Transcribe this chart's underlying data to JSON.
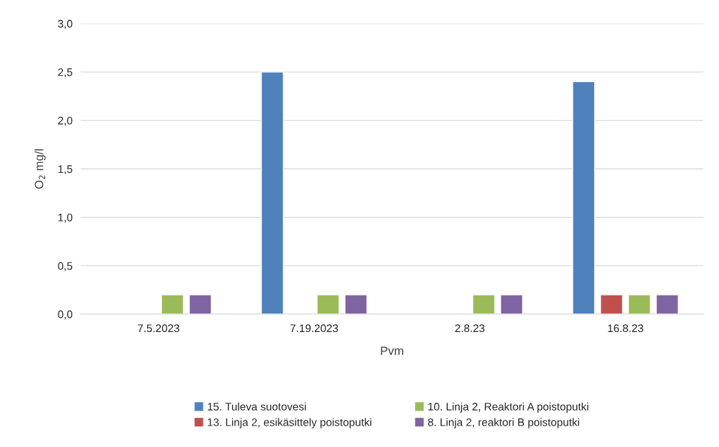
{
  "chart_data": {
    "type": "bar",
    "xlabel": "Pvm",
    "ylabel": "O$_{2}$ mg/l",
    "categories": [
      "7.5.2023",
      "7.19.2023",
      "2.8.23",
      "16.8.23"
    ],
    "series": [
      {
        "name": "15. Tuleva suotovesi",
        "color": "#4f81bd",
        "values": [
          null,
          2.5,
          null,
          2.4
        ]
      },
      {
        "name": "13. Linja 2, esikäsittely poistoputki",
        "color": "#c0504d",
        "values": [
          null,
          null,
          null,
          0.2
        ]
      },
      {
        "name": "10. Linja 2, Reaktori A poistoputki",
        "color": "#9bbb59",
        "values": [
          0.2,
          0.2,
          0.2,
          0.2
        ]
      },
      {
        "name": "8. Linja 2, reaktori B poistoputki",
        "color": "#8064a2",
        "values": [
          0.2,
          0.2,
          0.2,
          0.2
        ]
      }
    ],
    "ylim": [
      0,
      3
    ],
    "yticks": [
      {
        "value": 0,
        "label": "0,0"
      },
      {
        "value": 0.5,
        "label": "0,5"
      },
      {
        "value": 1,
        "label": "1,0"
      },
      {
        "value": 1.5,
        "label": "1,5"
      },
      {
        "value": 2,
        "label": "2,0"
      },
      {
        "value": 2.5,
        "label": "2,5"
      },
      {
        "value": 3,
        "label": "3,0"
      }
    ],
    "grid": "y",
    "legend": "bottom"
  }
}
